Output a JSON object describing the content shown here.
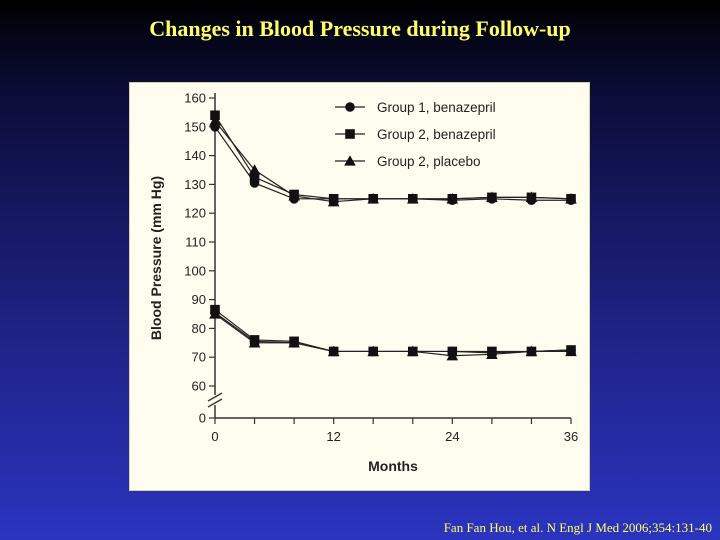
{
  "slide": {
    "title": "Changes in Blood Pressure during Follow-up",
    "citation": "Fan Fan Hou, et al. N Engl J Med 2006;354:131-40"
  },
  "chart_data": {
    "type": "line",
    "xlabel": "Months",
    "ylabel": "Blood Pressure (mm Hg)",
    "x_ticks": [
      0,
      12,
      24,
      36
    ],
    "y_ticks": [
      0,
      60,
      70,
      80,
      90,
      100,
      110,
      120,
      130,
      140,
      150,
      160
    ],
    "y_axis_break": "between 0 and 60",
    "ylim": [
      0,
      160
    ],
    "xlim": [
      0,
      36
    ],
    "grid": false,
    "legend_position": "top-right",
    "series": [
      {
        "name": "Group 1, benazepril",
        "marker": "circle",
        "x": [
          0,
          4,
          8,
          12,
          16,
          20,
          24,
          28,
          32,
          36
        ],
        "systolic": [
          150,
          130.5,
          125,
          125,
          125,
          125,
          124.5,
          125,
          124.5,
          124.5
        ],
        "diastolic": [
          85.5,
          75.5,
          75,
          72,
          72,
          72,
          72,
          71.5,
          72,
          72.5
        ]
      },
      {
        "name": "Group 2, benazepril",
        "marker": "square",
        "x": [
          0,
          4,
          8,
          12,
          16,
          20,
          24,
          28,
          32,
          36
        ],
        "systolic": [
          154,
          132.5,
          126.5,
          125,
          125,
          125,
          125,
          125.5,
          125.5,
          125
        ],
        "diastolic": [
          86.5,
          76,
          75.5,
          72,
          72,
          72,
          72,
          72,
          72,
          72.5
        ]
      },
      {
        "name": "Group 2, placebo",
        "marker": "triangle",
        "x": [
          0,
          4,
          8,
          12,
          16,
          20,
          24,
          28,
          32,
          36
        ],
        "systolic": [
          152,
          135,
          126,
          124,
          125,
          125,
          125,
          125.5,
          125.5,
          125
        ],
        "diastolic": [
          85,
          75,
          75,
          72,
          72,
          72,
          70.5,
          71,
          72,
          72
        ]
      }
    ]
  }
}
